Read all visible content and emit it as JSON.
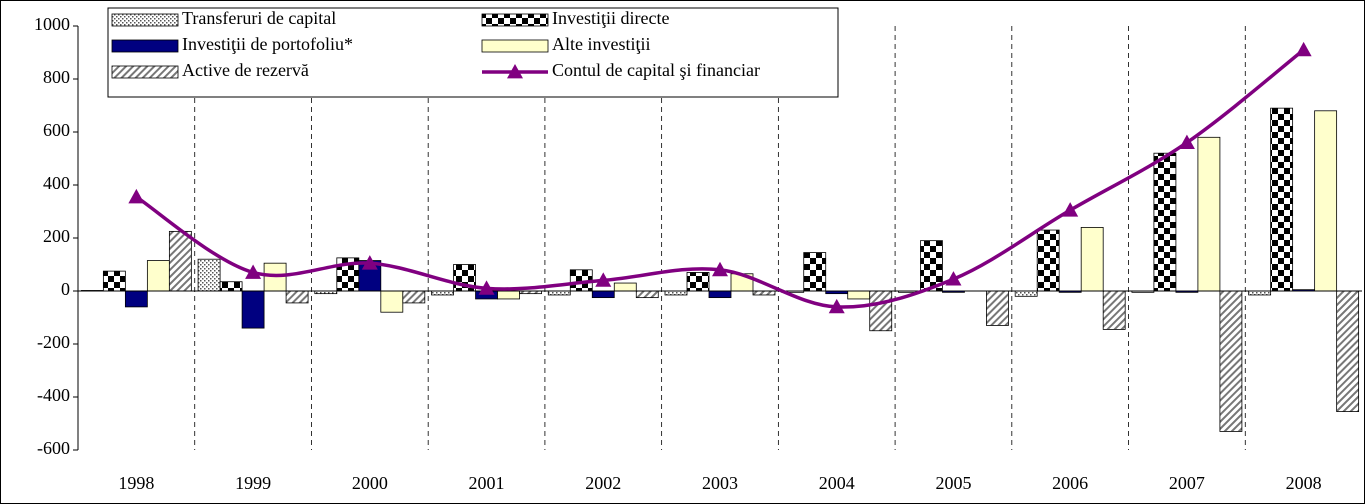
{
  "chart_data": {
    "type": "bar",
    "categories": [
      "1998",
      "1999",
      "2000",
      "2001",
      "2002",
      "2003",
      "2004",
      "2005",
      "2006",
      "2007",
      "2008"
    ],
    "series": [
      {
        "name": "Transferuri de capital",
        "color": "#c0c0c0",
        "pattern": "dots",
        "values": [
          2,
          120,
          -10,
          -15,
          -15,
          -15,
          -5,
          -5,
          -20,
          -5,
          -15
        ]
      },
      {
        "name": "Investiţii directe",
        "color": "#000000",
        "pattern": "checker",
        "values": [
          75,
          35,
          125,
          100,
          80,
          70,
          145,
          190,
          230,
          520,
          690
        ]
      },
      {
        "name": "Investiţii de portofoliu*",
        "color": "#000080",
        "pattern": "solid",
        "values": [
          -60,
          -140,
          115,
          -30,
          -25,
          -25,
          -10,
          -5,
          -5,
          -5,
          5
        ]
      },
      {
        "name": "Alte investiţii",
        "color": "#ffffcc",
        "pattern": "solid",
        "values": [
          115,
          105,
          -80,
          -30,
          30,
          65,
          -30,
          0,
          240,
          580,
          680
        ]
      },
      {
        "name": "Active de rezervă",
        "color": "#808080",
        "pattern": "hatch",
        "values": [
          225,
          -45,
          -45,
          -10,
          -25,
          -15,
          -150,
          -130,
          -145,
          -530,
          -455
        ]
      },
      {
        "name": "Contul de capital şi financiar",
        "color": "#800080",
        "type": "line",
        "values": [
          355,
          70,
          105,
          10,
          40,
          80,
          -60,
          45,
          305,
          560,
          910
        ]
      }
    ],
    "ylim": [
      -600,
      1000
    ],
    "yticks": [
      -600,
      -400,
      -200,
      0,
      200,
      400,
      600,
      800,
      1000
    ]
  }
}
